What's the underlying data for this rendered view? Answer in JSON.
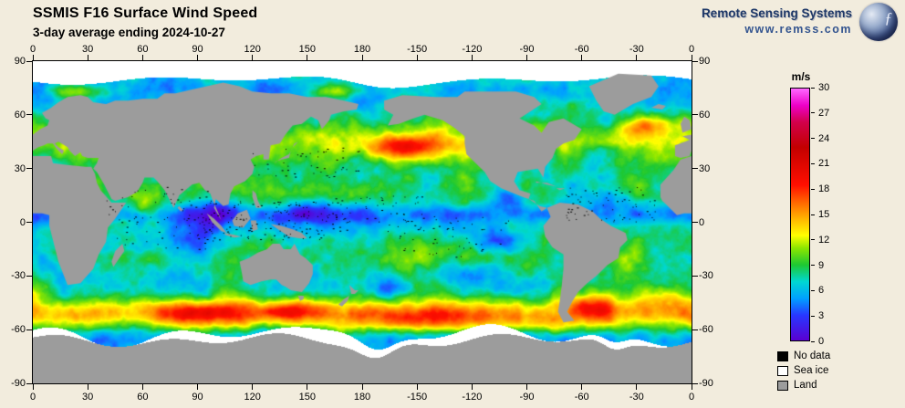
{
  "header": {
    "title": "SSMIS F16 Surface Wind Speed",
    "subtitle": "3-day average ending 2024-10-27"
  },
  "branding": {
    "name": "Remote Sensing Systems",
    "url": "www.remss.com"
  },
  "map": {
    "projection": "equirectangular",
    "lon_ticks": [
      0,
      30,
      60,
      90,
      120,
      150,
      180,
      -150,
      -120,
      -90,
      -60,
      -30,
      0
    ],
    "lat_ticks": [
      90,
      60,
      30,
      0,
      -30,
      -60,
      -90
    ],
    "land_color": "#9c9c9c",
    "sea_ice_color": "#ffffff",
    "no_data_color": "#000000",
    "wind_features": {
      "high": [
        {
          "lon": 205,
          "lat": 42,
          "slon": 24,
          "slat": 7,
          "amp": 8
        },
        {
          "lon": 335,
          "lat": 54,
          "slon": 14,
          "slat": 6,
          "amp": 6.5
        },
        {
          "lon": 25,
          "lat": 73,
          "slon": 17,
          "slat": 4.5,
          "amp": 7
        },
        {
          "lon": 165,
          "lat": 73,
          "slon": 13,
          "slat": 4,
          "amp": 5
        },
        {
          "lon": 305,
          "lat": -46,
          "slon": 13,
          "slat": 7,
          "amp": 6
        },
        {
          "lon": 347,
          "lat": -43,
          "slon": 14,
          "slat": 7,
          "amp": 5
        },
        {
          "lon": 90,
          "lat": -50,
          "slon": 32,
          "slat": 6,
          "amp": 4.5
        },
        {
          "lon": 140,
          "lat": -49,
          "slon": 16,
          "slat": 6,
          "amp": 5
        },
        {
          "lon": 215,
          "lat": -55,
          "slon": 36,
          "slat": 7,
          "amp": 5.5
        },
        {
          "lon": 280,
          "lat": -57,
          "slon": 16,
          "slat": 6,
          "amp": 4
        },
        {
          "lon": 62,
          "lat": 9,
          "slon": 8,
          "slat": 6,
          "amp": 3
        }
      ],
      "low": [
        {
          "lon": 85,
          "lat": -10,
          "slon": 18,
          "slat": 11,
          "amp": 5
        },
        {
          "lon": 100,
          "lat": 5,
          "slon": 12,
          "slat": 8,
          "amp": 4.5
        },
        {
          "lon": 150,
          "lat": 6,
          "slon": 14,
          "slat": 7,
          "amp": 3.5
        },
        {
          "lon": 252,
          "lat": -10,
          "slon": 16,
          "slat": 8,
          "amp": 4
        },
        {
          "lon": 262,
          "lat": 12,
          "slon": 10,
          "slat": 6,
          "amp": 3
        },
        {
          "lon": 192,
          "lat": -38,
          "slon": 9,
          "slat": 6,
          "amp": 4
        },
        {
          "lon": 235,
          "lat": -28,
          "slon": 20,
          "slat": 7,
          "amp": 3
        },
        {
          "lon": 322,
          "lat": 12,
          "slon": 12,
          "slat": 6,
          "amp": 2.5
        },
        {
          "lon": 8,
          "lat": -22,
          "slon": 9,
          "slat": 9,
          "amp": 2.5
        }
      ]
    }
  },
  "colorbar": {
    "unit": "m/s",
    "min": 0,
    "max": 30,
    "ticks": [
      30,
      27,
      24,
      21,
      18,
      15,
      12,
      9,
      6,
      3,
      0
    ],
    "stops": [
      {
        "value": 0,
        "color": "#5a00d2"
      },
      {
        "value": 3,
        "color": "#2837ff"
      },
      {
        "value": 5,
        "color": "#00a0ff"
      },
      {
        "value": 7,
        "color": "#00d7d2"
      },
      {
        "value": 9,
        "color": "#1ec832"
      },
      {
        "value": 11,
        "color": "#8ce600"
      },
      {
        "value": 12.5,
        "color": "#ffff00"
      },
      {
        "value": 14.5,
        "color": "#ffb400"
      },
      {
        "value": 16.5,
        "color": "#ff6400"
      },
      {
        "value": 18.5,
        "color": "#ff0f00"
      },
      {
        "value": 23,
        "color": "#c30000"
      },
      {
        "value": 26,
        "color": "#d2004b"
      },
      {
        "value": 28,
        "color": "#ee00c8"
      },
      {
        "value": 30,
        "color": "#ff69ff"
      }
    ]
  },
  "legend": {
    "items": [
      {
        "label": "No data",
        "color": "#000000"
      },
      {
        "label": "Sea ice",
        "color": "#ffffff"
      },
      {
        "label": "Land",
        "color": "#9c9c9c"
      }
    ]
  }
}
